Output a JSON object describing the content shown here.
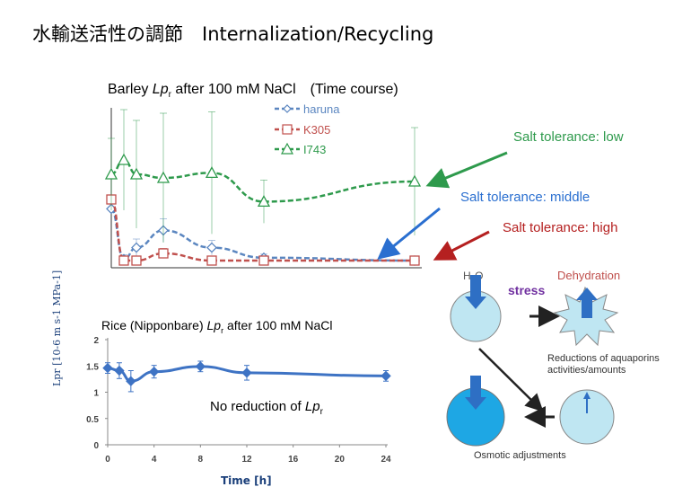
{
  "slide": {
    "title": "水輸送活性の調節　Internalization/Recycling"
  },
  "annotations": {
    "barley_title_a": "Barley ",
    "barley_title_b": "Lp",
    "barley_title_c": "r",
    "barley_title_d": " after 100 mM NaCl　(Time course)",
    "tolerance_low": "Salt tolerance: low",
    "tolerance_middle": "Salt tolerance: middle",
    "tolerance_high": "Salt tolerance:  high",
    "rice_title_a": "Rice (Nipponbare) ",
    "rice_title_b": "Lp",
    "rice_title_c": "r",
    "rice_title_d": " after 100 mM NaCl",
    "no_reduction_a": "No reduction of ",
    "no_reduction_b": "Lp",
    "no_reduction_c": "r",
    "y_axis_label": "Lpr [10-6 m s-1 MPa-1]",
    "x_axis_label": "Time [h]"
  },
  "diagram": {
    "h2o_label_a": "H",
    "h2o_label_b": "2",
    "h2o_label_c": "O",
    "dehydration": "Dehydration",
    "stress": "stress",
    "reductions_line1": "Reductions of aquaporins",
    "reductions_line2": "activities/amounts",
    "osmotic": "Osmotic adjustments"
  },
  "colors": {
    "haruna": "#5b86c0",
    "k305": "#c0504d",
    "i743": "#2e9a4c",
    "rice": "#3e73c4",
    "tol_low": "#2e9a4c",
    "tol_mid": "#2a6fd0",
    "tol_high": "#b52020"
  },
  "chart_data": [
    {
      "type": "line",
      "title": "Barley Lpr after 100 mM NaCl (Time course)",
      "x": [
        0,
        1,
        2,
        4,
        8,
        12,
        24
      ],
      "grid": false,
      "legend": "top-center",
      "series": [
        {
          "name": "haruna",
          "x": [
            0,
            1,
            2,
            4,
            8,
            12,
            24
          ],
          "values": [
            0.72,
            0.02,
            0.18,
            0.42,
            0.18,
            0.04,
            0.0
          ],
          "err": [
            0,
            0.06,
            0.12,
            0.16,
            0.1,
            0.05,
            0.03
          ]
        },
        {
          "name": "K305",
          "x": [
            0,
            1,
            2,
            4,
            8,
            12,
            24
          ],
          "values": [
            0.85,
            0.0,
            0.0,
            0.1,
            0.0,
            0.0,
            0.0
          ],
          "err": [
            0.04,
            0.03,
            0.03,
            0.07,
            0.04,
            0.03,
            0.03
          ]
        },
        {
          "name": "I743",
          "x": [
            0,
            1,
            2,
            4,
            8,
            12,
            24
          ],
          "values": [
            1.2,
            1.4,
            1.2,
            1.15,
            1.22,
            0.82,
            1.1
          ],
          "err": [
            0.5,
            0.7,
            0.75,
            0.9,
            0.85,
            0.3,
            0.75
          ]
        }
      ]
    },
    {
      "type": "line",
      "title": "Rice (Nipponbare) Lpr after 100 mM NaCl",
      "xlabel": "Time [h]",
      "ylabel": "Lpr [10-6 m s-1 MPa-1]",
      "x": [
        0,
        1,
        2,
        4,
        8,
        12,
        24
      ],
      "xticks": [
        0,
        4,
        8,
        12,
        16,
        20,
        24
      ],
      "yticks": [
        0,
        0.5,
        1,
        1.5,
        2
      ],
      "xlim": [
        0,
        24
      ],
      "ylim": [
        0,
        2
      ],
      "grid": false,
      "series": [
        {
          "name": "Rice",
          "x": [
            0,
            1,
            2,
            4,
            8,
            12,
            24
          ],
          "values": [
            1.46,
            1.41,
            1.21,
            1.39,
            1.49,
            1.37,
            1.31
          ],
          "err": [
            0.1,
            0.15,
            0.2,
            0.12,
            0.1,
            0.14,
            0.1
          ]
        }
      ]
    }
  ]
}
